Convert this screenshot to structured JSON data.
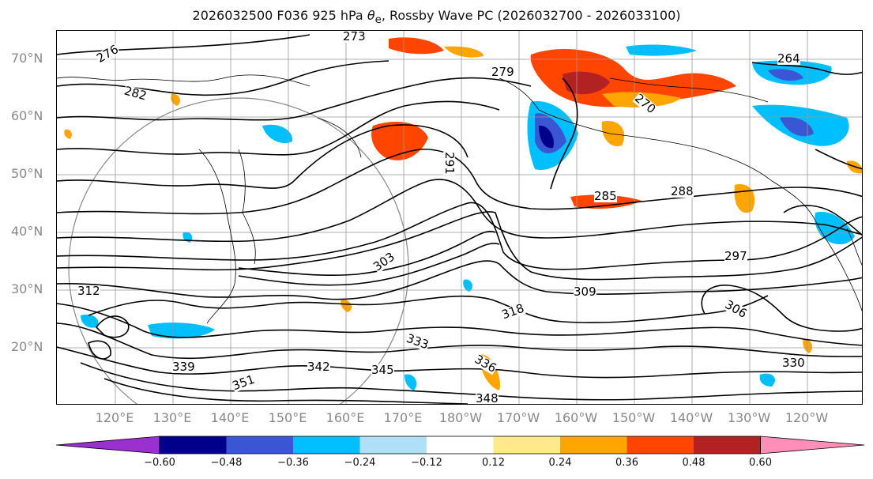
{
  "title_parts": {
    "prefix": "2026032500 F036 925 hPa ",
    "symbol": "θ",
    "subscript": "e",
    "suffix": ", Rossby Wave PC (2026032700 - 2026033100)"
  },
  "latitude_labels": [
    "70°N",
    "60°N",
    "50°N",
    "40°N",
    "30°N",
    "20°N"
  ],
  "longitude_labels": [
    "120°E",
    "130°E",
    "140°E",
    "150°E",
    "160°E",
    "170°E",
    "180°W",
    "170°W",
    "160°W",
    "150°W",
    "140°W",
    "130°W",
    "120°W"
  ],
  "contour_labels": [
    "273",
    "276",
    "279",
    "282",
    "285",
    "288",
    "291",
    "297",
    "303",
    "309",
    "312",
    "318",
    "330",
    "333",
    "336",
    "339",
    "342",
    "345",
    "348",
    "351",
    "264",
    "270",
    "306"
  ],
  "colorbar": {
    "tick_labels": [
      "−0.60",
      "−0.48",
      "−0.36",
      "−0.24",
      "−0.12",
      "0.12",
      "0.24",
      "0.36",
      "0.48",
      "0.60"
    ],
    "colors": [
      "#9b30d0",
      "#00008b",
      "#3a56d4",
      "#00bfff",
      "#b0e0f8",
      "#ffffff",
      "#ffe98a",
      "#ffa500",
      "#ff4500",
      "#b22222",
      "#ff8fb8"
    ]
  },
  "colors": {
    "contour": "#000000",
    "grid": "#999999",
    "axis_label": "#888888"
  }
}
